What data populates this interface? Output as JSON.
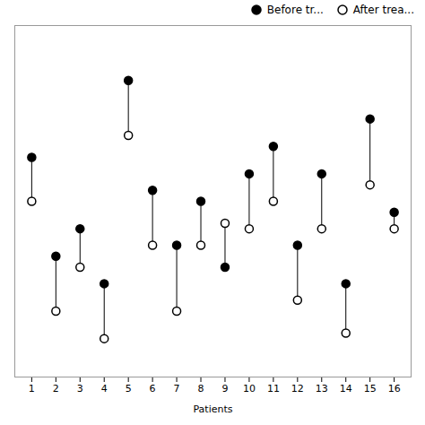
{
  "chart_data": {
    "type": "dumbbell",
    "x": [
      1,
      2,
      3,
      4,
      5,
      6,
      7,
      8,
      9,
      10,
      11,
      12,
      13,
      14,
      15,
      16
    ],
    "xlabel": "Patients",
    "xlim": [
      0.3,
      16.7
    ],
    "xticks": [
      1,
      2,
      3,
      4,
      5,
      6,
      7,
      8,
      9,
      10,
      11,
      12,
      13,
      14,
      15,
      16
    ],
    "ylim": [
      2.8,
      9.2
    ],
    "yticks": [],
    "tick_labels": "x",
    "grid": false,
    "legend": "upper right",
    "series": [
      {
        "name": "Before tr...",
        "color": "black",
        "marker": "filled_circle",
        "values": [
          6.8,
          5.0,
          5.5,
          4.5,
          8.2,
          6.2,
          5.2,
          6.0,
          4.8,
          6.5,
          7.0,
          5.2,
          6.5,
          4.5,
          7.5,
          5.8
        ]
      },
      {
        "name": "After trea...",
        "color": "black",
        "marker": "open_circle",
        "values": [
          6.0,
          4.0,
          4.8,
          3.5,
          7.2,
          5.2,
          4.0,
          5.2,
          5.6,
          5.5,
          6.0,
          4.2,
          5.5,
          3.6,
          6.3,
          5.5
        ]
      }
    ]
  }
}
